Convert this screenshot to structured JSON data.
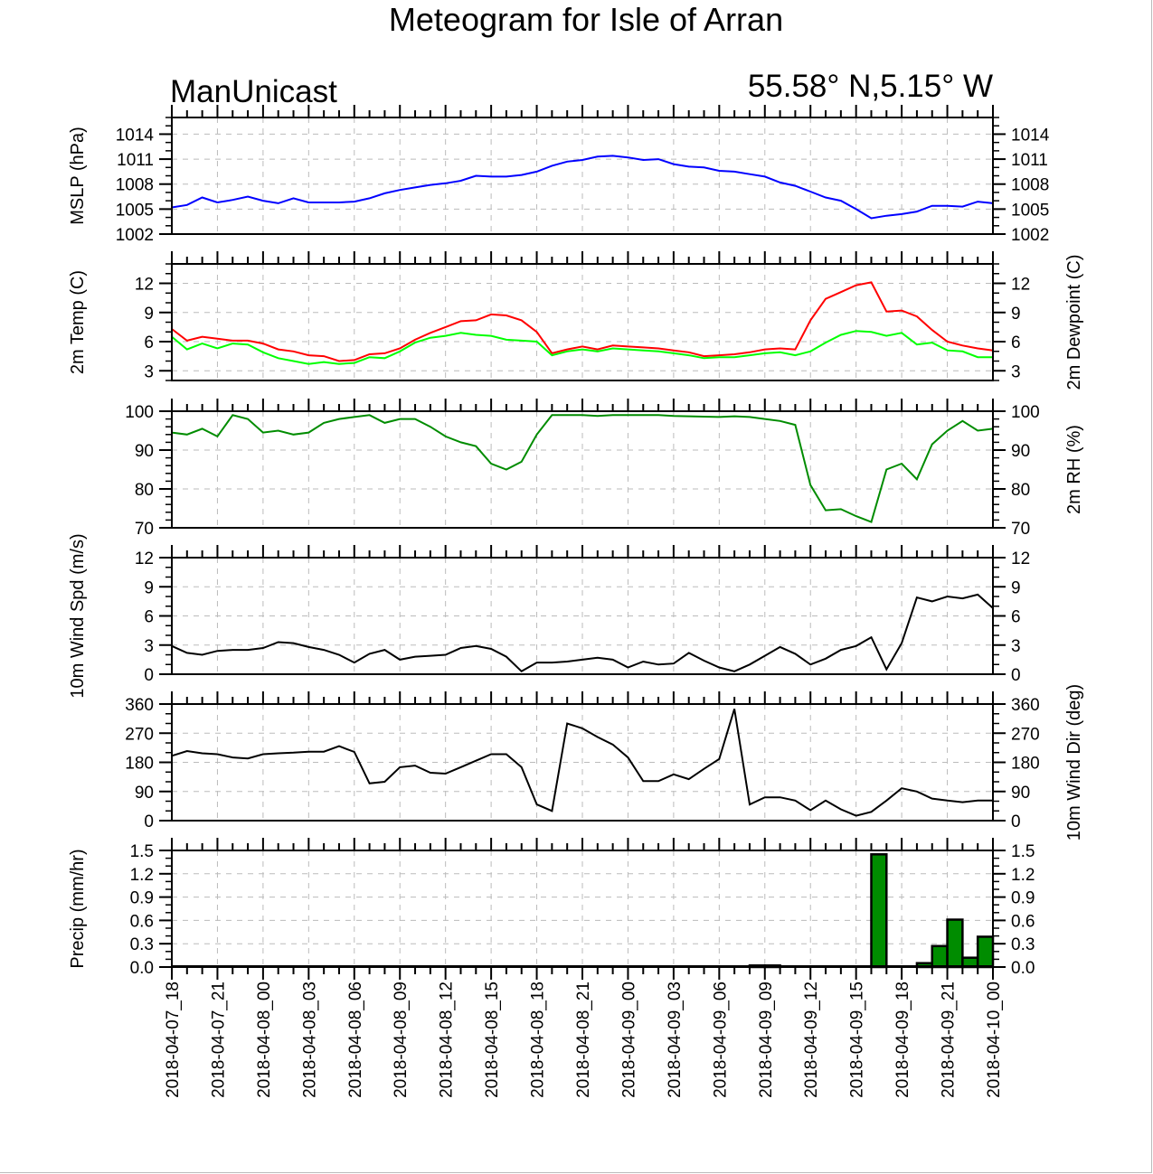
{
  "chart_data": [
    {
      "type": "line",
      "title": "Meteogram for Isle of Arran",
      "subtitle_left": "ManUnicast",
      "subtitle_right": "55.58° N,5.15° W",
      "x_start": "2018-04-07_18",
      "x_hours": 54,
      "xtick_labels": [
        "2018-04-07_18",
        "2018-04-07_21",
        "2018-04-08_00",
        "2018-04-08_03",
        "2018-04-08_06",
        "2018-04-08_09",
        "2018-04-08_12",
        "2018-04-08_15",
        "2018-04-08_18",
        "2018-04-08_21",
        "2018-04-09_00",
        "2018-04-09_03",
        "2018-04-09_06",
        "2018-04-09_09",
        "2018-04-09_12",
        "2018-04-09_15",
        "2018-04-09_18",
        "2018-04-09_21",
        "2018-04-10_00"
      ],
      "grid": true,
      "panels": [
        {
          "id": "mslp",
          "ylabel": "MSLP (hPa)",
          "ylabel_right": "",
          "ylim": [
            1002,
            1016
          ],
          "yticks": [
            1002,
            1005,
            1008,
            1011,
            1014
          ],
          "ytick_labels": [
            "1002",
            "1005",
            "1008",
            "1011",
            "1014"
          ],
          "right_labels": true,
          "minor": 1,
          "series": [
            {
              "name": "MSLP",
              "color": "#0000ff",
              "values": [
                1005.2,
                1005.5,
                1006.4,
                1005.8,
                1006.1,
                1006.5,
                1006.0,
                1005.7,
                1006.3,
                1005.8,
                1005.8,
                1005.8,
                1005.9,
                1006.3,
                1006.9,
                1007.3,
                1007.6,
                1007.9,
                1008.1,
                1008.4,
                1009.0,
                1008.9,
                1008.9,
                1009.1,
                1009.5,
                1010.2,
                1010.7,
                1010.9,
                1011.3,
                1011.4,
                1011.2,
                1010.9,
                1011.0,
                1010.4,
                1010.1,
                1010.0,
                1009.6,
                1009.5,
                1009.2,
                1008.9,
                1008.2,
                1007.8,
                1007.1,
                1006.4,
                1006.0,
                1005.0,
                1003.9,
                1004.2,
                1004.4,
                1004.7,
                1005.4,
                1005.4,
                1005.3,
                1005.9,
                1005.7
              ]
            }
          ]
        },
        {
          "id": "temp",
          "ylabel": "2m Temp (C)",
          "ylabel_right": "2m Dewpoint (C)",
          "ylim": [
            2,
            14
          ],
          "yticks": [
            3,
            6,
            9,
            12
          ],
          "ytick_labels": [
            "3",
            "6",
            "9",
            "12"
          ],
          "right_labels": true,
          "minor": 1,
          "series": [
            {
              "name": "2m Temp",
              "color": "#ff0000",
              "values": [
                7.3,
                6.1,
                6.5,
                6.3,
                6.1,
                6.1,
                5.8,
                5.2,
                5.0,
                4.6,
                4.5,
                4.0,
                4.1,
                4.7,
                4.8,
                5.3,
                6.2,
                6.9,
                7.5,
                8.1,
                8.2,
                8.8,
                8.7,
                8.2,
                7.0,
                4.8,
                5.2,
                5.5,
                5.2,
                5.6,
                5.5,
                5.4,
                5.3,
                5.1,
                4.9,
                4.5,
                4.6,
                4.7,
                4.9,
                5.2,
                5.3,
                5.2,
                8.2,
                10.4,
                11.1,
                11.8,
                12.1,
                9.1,
                9.2,
                8.6,
                7.2,
                6.0,
                5.6,
                5.3,
                5.1
              ]
            },
            {
              "name": "2m Dewpoint",
              "color": "#00ff00",
              "values": [
                6.5,
                5.2,
                5.8,
                5.3,
                5.8,
                5.7,
                4.9,
                4.3,
                4.0,
                3.7,
                3.9,
                3.7,
                3.8,
                4.4,
                4.3,
                5.0,
                5.9,
                6.4,
                6.6,
                6.9,
                6.7,
                6.6,
                6.2,
                6.1,
                6.0,
                4.6,
                5.0,
                5.2,
                5.0,
                5.3,
                5.2,
                5.1,
                5.0,
                4.8,
                4.6,
                4.3,
                4.4,
                4.4,
                4.6,
                4.8,
                4.9,
                4.6,
                5.0,
                5.9,
                6.7,
                7.1,
                7.0,
                6.6,
                6.9,
                5.7,
                5.9,
                5.1,
                5.0,
                4.4,
                4.4
              ]
            }
          ]
        },
        {
          "id": "rh",
          "ylabel": "",
          "ylabel_right": "2m RH (%)",
          "ylim": [
            70,
            100
          ],
          "yticks": [
            70,
            80,
            90,
            100
          ],
          "ytick_labels": [
            "70",
            "80",
            "90",
            "100"
          ],
          "right_labels": true,
          "minor": 2,
          "series": [
            {
              "name": "2m RH",
              "color": "#008c00",
              "values": [
                94.5,
                94,
                95.5,
                93.5,
                99,
                98,
                94.5,
                95,
                94,
                94.5,
                97,
                98,
                98.5,
                99,
                97,
                98,
                98,
                96,
                93.5,
                92,
                91,
                86.5,
                85,
                87,
                94,
                99,
                99,
                99,
                98.8,
                99,
                99,
                99,
                99,
                98.8,
                98.7,
                98.6,
                98.5,
                98.7,
                98.5,
                98,
                97.5,
                96.5,
                81,
                74.5,
                74.8,
                73,
                71.5,
                85,
                86.5,
                82.5,
                91.5,
                95,
                97.5,
                95,
                95.5
              ]
            }
          ]
        },
        {
          "id": "wspd",
          "ylabel": "10m Wind Spd (m/s)",
          "ylabel_right": "",
          "ylim": [
            0,
            12
          ],
          "yticks": [
            0,
            3,
            6,
            9,
            12
          ],
          "ytick_labels": [
            "0",
            "3",
            "6",
            "9",
            "12"
          ],
          "right_labels": true,
          "minor": 1,
          "series": [
            {
              "name": "10m Wind Spd",
              "color": "#000000",
              "values": [
                2.9,
                2.2,
                2.0,
                2.4,
                2.5,
                2.5,
                2.7,
                3.3,
                3.2,
                2.8,
                2.5,
                2.0,
                1.2,
                2.1,
                2.5,
                1.5,
                1.8,
                1.9,
                2.0,
                2.7,
                2.9,
                2.6,
                1.8,
                0.3,
                1.2,
                1.2,
                1.3,
                1.5,
                1.7,
                1.5,
                0.7,
                1.3,
                1.0,
                1.1,
                2.2,
                1.4,
                0.7,
                0.3,
                1.0,
                1.9,
                2.8,
                2.1,
                1.0,
                1.6,
                2.5,
                2.9,
                3.8,
                0.5,
                3.2,
                7.9,
                7.5,
                8.0,
                7.8,
                8.2,
                6.8
              ]
            }
          ]
        },
        {
          "id": "wdir",
          "ylabel": "",
          "ylabel_right": "10m Wind Dir (deg)",
          "ylim": [
            0,
            360
          ],
          "yticks": [
            0,
            90,
            180,
            270,
            360
          ],
          "ytick_labels": [
            "0",
            "90",
            "180",
            "270",
            "360"
          ],
          "right_labels": true,
          "minor": 30,
          "series": [
            {
              "name": "10m Wind Dir",
              "color": "#000000",
              "values": [
                200,
                215,
                208,
                205,
                195,
                192,
                205,
                208,
                210,
                213,
                213,
                230,
                212,
                115,
                120,
                165,
                170,
                148,
                145,
                165,
                185,
                205,
                205,
                165,
                50,
                30,
                300,
                285,
                258,
                235,
                195,
                122,
                122,
                143,
                128,
                160,
                190,
                345,
                50,
                72,
                72,
                62,
                32,
                62,
                35,
                15,
                27,
                62,
                100,
                90,
                68,
                62,
                57,
                62,
                62
              ]
            }
          ]
        },
        {
          "id": "precip",
          "type": "bar",
          "ylabel": "Precip (mm/hr)",
          "ylabel_right": "",
          "ylim": [
            0,
            1.5
          ],
          "yticks": [
            0,
            0.3,
            0.6,
            0.9,
            1.2,
            1.5
          ],
          "ytick_labels": [
            "0.0",
            "0.3",
            "0.6",
            "0.9",
            "1.2",
            "1.5"
          ],
          "right_labels": true,
          "minor": 0.1,
          "bar_color": "#008c00",
          "note": "values are hourly totals for the hour ending at index+1",
          "values": [
            0,
            0,
            0,
            0,
            0,
            0,
            0,
            0,
            0,
            0,
            0,
            0,
            0,
            0,
            0,
            0,
            0,
            0,
            0,
            0,
            0,
            0,
            0,
            0,
            0,
            0,
            0,
            0,
            0,
            0,
            0,
            0,
            0,
            0,
            0,
            0,
            0,
            0,
            0.02,
            0.02,
            0,
            0,
            0,
            0,
            0,
            0,
            1.45,
            0,
            0,
            0.05,
            0.27,
            0.61,
            0.12,
            0.39
          ]
        }
      ]
    }
  ]
}
